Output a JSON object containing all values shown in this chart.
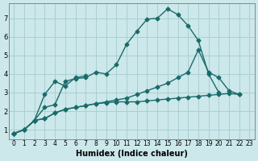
{
  "bg_color": "#cce8ea",
  "grid_color": "#aacfd2",
  "line_color": "#1a6b6b",
  "xlabel": "Humidex (Indice chaleur)",
  "xlim": [
    -0.5,
    23.5
  ],
  "ylim": [
    0.5,
    7.8
  ],
  "yticks": [
    1,
    2,
    3,
    4,
    5,
    6,
    7
  ],
  "xticks": [
    0,
    1,
    2,
    3,
    4,
    5,
    6,
    7,
    8,
    9,
    10,
    11,
    12,
    13,
    14,
    15,
    16,
    17,
    18,
    19,
    20,
    21,
    22,
    23
  ],
  "marker_size": 2.5,
  "line_width": 1.0,
  "series": [
    [
      [
        0,
        0.8
      ],
      [
        1,
        1.0
      ],
      [
        2,
        1.5
      ],
      [
        3,
        2.2
      ],
      [
        4,
        2.35
      ],
      [
        5,
        3.6
      ],
      [
        6,
        3.75
      ],
      [
        7,
        3.8
      ],
      [
        8,
        4.1
      ],
      [
        9,
        4.0
      ],
      [
        10,
        4.5
      ],
      [
        11,
        5.6
      ],
      [
        12,
        6.3
      ],
      [
        13,
        6.95
      ],
      [
        14,
        7.0
      ],
      [
        15,
        7.5
      ],
      [
        16,
        7.2
      ],
      [
        17,
        6.6
      ],
      [
        18,
        5.8
      ],
      [
        19,
        4.0
      ],
      [
        20,
        3.0
      ]
    ],
    [
      [
        0,
        0.8
      ],
      [
        1,
        1.0
      ],
      [
        2,
        1.5
      ],
      [
        3,
        2.9
      ],
      [
        4,
        3.6
      ],
      [
        5,
        3.35
      ],
      [
        6,
        3.8
      ],
      [
        7,
        3.9
      ]
    ],
    [
      [
        0,
        0.8
      ],
      [
        1,
        1.0
      ],
      [
        2,
        1.5
      ],
      [
        3,
        1.6
      ],
      [
        4,
        1.9
      ],
      [
        5,
        2.1
      ],
      [
        6,
        2.2
      ],
      [
        7,
        2.3
      ],
      [
        8,
        2.4
      ],
      [
        9,
        2.45
      ],
      [
        10,
        2.5
      ],
      [
        11,
        2.5
      ],
      [
        12,
        2.5
      ],
      [
        13,
        2.55
      ],
      [
        14,
        2.6
      ],
      [
        15,
        2.65
      ],
      [
        16,
        2.7
      ],
      [
        17,
        2.75
      ],
      [
        18,
        2.8
      ],
      [
        19,
        2.85
      ],
      [
        20,
        2.9
      ],
      [
        21,
        2.95
      ],
      [
        22,
        2.9
      ]
    ],
    [
      [
        0,
        0.8
      ],
      [
        1,
        1.0
      ],
      [
        2,
        1.5
      ],
      [
        3,
        1.6
      ],
      [
        4,
        1.9
      ],
      [
        5,
        2.1
      ],
      [
        6,
        2.2
      ],
      [
        7,
        2.3
      ],
      [
        8,
        2.4
      ],
      [
        9,
        2.5
      ],
      [
        10,
        2.6
      ],
      [
        11,
        2.7
      ],
      [
        12,
        2.9
      ],
      [
        13,
        3.1
      ],
      [
        14,
        3.3
      ],
      [
        15,
        3.5
      ],
      [
        16,
        3.8
      ],
      [
        17,
        4.1
      ],
      [
        18,
        5.3
      ],
      [
        19,
        4.1
      ],
      [
        20,
        3.8
      ],
      [
        21,
        3.1
      ],
      [
        22,
        2.9
      ]
    ]
  ]
}
